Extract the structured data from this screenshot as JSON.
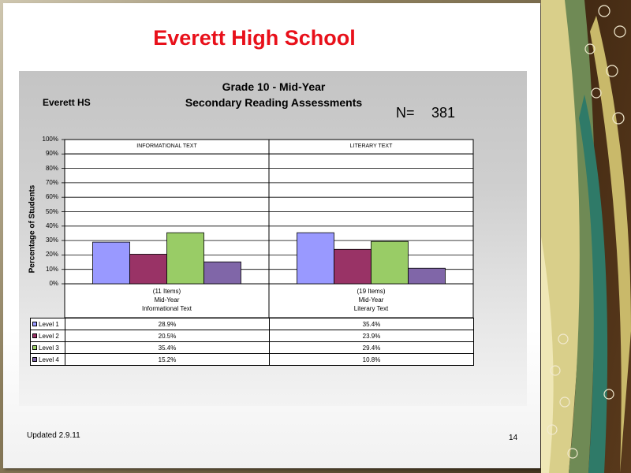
{
  "slide": {
    "title": "Everett High School",
    "footer_updated": "Updated 2.9.11",
    "page_number": "14"
  },
  "chart_header": {
    "school": "Everett HS",
    "title_line1": "Grade 10 - Mid-Year",
    "title_line2": "Secondary Reading Assessments",
    "n_label": "N=",
    "n_value": "381"
  },
  "colors": {
    "title_red": "#e8101a",
    "level1": "#9999ff",
    "level2": "#993366",
    "level3": "#99cc66",
    "level4": "#8066a8"
  },
  "chart_data": {
    "type": "bar",
    "title": "Grade 10 - Mid-Year Secondary Reading Assessments",
    "ylabel": "Percentage of Students",
    "ylim": [
      0,
      100
    ],
    "yticks": [
      "0%",
      "10%",
      "20%",
      "30%",
      "40%",
      "50%",
      "60%",
      "70%",
      "80%",
      "90%",
      "100%"
    ],
    "grid": true,
    "panels": [
      "INFORMATIONAL TEXT",
      "LITERARY TEXT"
    ],
    "categories": [
      [
        "(11 Items)",
        "Mid-Year",
        "Informational Text"
      ],
      [
        "(19 Items)",
        "Mid-Year",
        "Literary Text"
      ]
    ],
    "series": [
      {
        "name": "Level 1",
        "values": [
          28.9,
          35.4
        ],
        "labels": [
          "28.9%",
          "35.4%"
        ]
      },
      {
        "name": "Level 2",
        "values": [
          20.5,
          23.9
        ],
        "labels": [
          "20.5%",
          "23.9%"
        ]
      },
      {
        "name": "Level 3",
        "values": [
          35.4,
          29.4
        ],
        "labels": [
          "35.4%",
          "29.4%"
        ]
      },
      {
        "name": "Level 4",
        "values": [
          15.2,
          10.8
        ],
        "labels": [
          "15.2%",
          "10.8%"
        ]
      }
    ]
  }
}
